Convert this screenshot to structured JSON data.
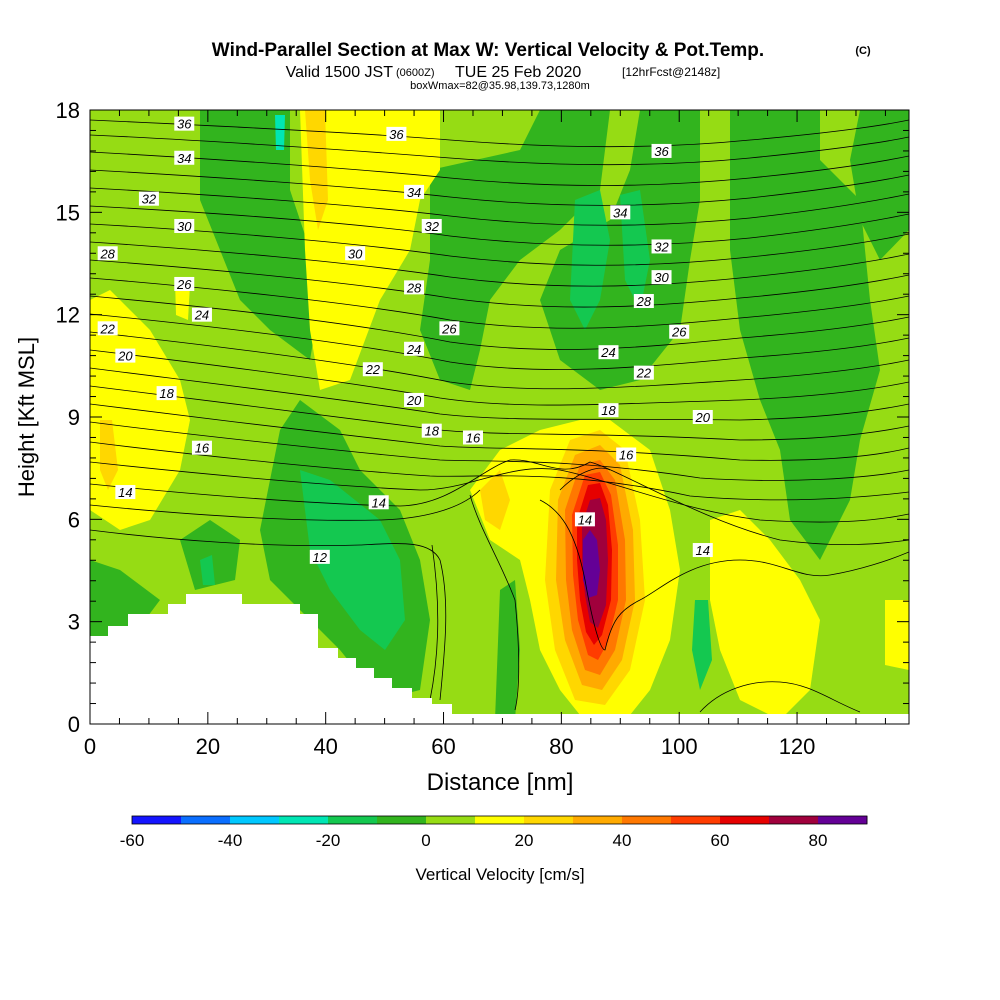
{
  "header": {
    "title": "Wind-Parallel Section at Max W: Vertical Velocity & Pot.Temp.",
    "copyright": "(C)",
    "valid_prefix": "Valid 1500 JST",
    "valid_zulu": "(0600Z)",
    "valid_date": "TUE 25 Feb 2020",
    "forecast": "[12hrFcst@2148z]",
    "box_info": "boxWmax=82@35.98,139.73,1280m"
  },
  "chart_data": {
    "type": "heatmap",
    "xlabel": "Distance [nm]",
    "ylabel": "Height [Kft MSL]",
    "xlim": [
      0,
      139
    ],
    "ylim": [
      0,
      18
    ],
    "x_ticks": [
      "0",
      "20",
      "40",
      "60",
      "80",
      "100",
      "120"
    ],
    "x_tick_values": [
      0,
      20,
      40,
      60,
      80,
      100,
      120
    ],
    "y_ticks": [
      "0",
      "3",
      "6",
      "9",
      "12",
      "15",
      "18"
    ],
    "y_tick_values": [
      0,
      3,
      6,
      9,
      12,
      15,
      18
    ],
    "colorbar": {
      "label": "Vertical Velocity [cm/s]",
      "tick_labels": [
        "-60",
        "-40",
        "-20",
        "0",
        "20",
        "40",
        "60",
        "80"
      ],
      "tick_values": [
        -60,
        -40,
        -20,
        0,
        20,
        40,
        60,
        80
      ],
      "range": [
        -60,
        90
      ],
      "colors": [
        "#1414ff",
        "#0a6eff",
        "#00c8ff",
        "#00e6b4",
        "#14c850",
        "#32b41e",
        "#96dc14",
        "#ffff00",
        "#ffd700",
        "#ffaa00",
        "#ff7800",
        "#ff3c00",
        "#e60000",
        "#a0003c",
        "#640096"
      ]
    },
    "contour_labels": [
      {
        "x": 16,
        "y": 17.6,
        "text": "36"
      },
      {
        "x": 52,
        "y": 17.3,
        "text": "36"
      },
      {
        "x": 97,
        "y": 16.8,
        "text": "36"
      },
      {
        "x": 16,
        "y": 16.6,
        "text": "34"
      },
      {
        "x": 55,
        "y": 15.6,
        "text": "34"
      },
      {
        "x": 90,
        "y": 15.0,
        "text": "34"
      },
      {
        "x": 10,
        "y": 15.4,
        "text": "32"
      },
      {
        "x": 58,
        "y": 14.6,
        "text": "32"
      },
      {
        "x": 97,
        "y": 14.0,
        "text": "32"
      },
      {
        "x": 16,
        "y": 14.6,
        "text": "30"
      },
      {
        "x": 45,
        "y": 13.8,
        "text": "30"
      },
      {
        "x": 97,
        "y": 13.1,
        "text": "30"
      },
      {
        "x": 3,
        "y": 13.8,
        "text": "28"
      },
      {
        "x": 55,
        "y": 12.8,
        "text": "28"
      },
      {
        "x": 94,
        "y": 12.4,
        "text": "28"
      },
      {
        "x": 16,
        "y": 12.9,
        "text": "26"
      },
      {
        "x": 61,
        "y": 11.6,
        "text": "26"
      },
      {
        "x": 100,
        "y": 11.5,
        "text": "26"
      },
      {
        "x": 19,
        "y": 12.0,
        "text": "24"
      },
      {
        "x": 55,
        "y": 11.0,
        "text": "24"
      },
      {
        "x": 88,
        "y": 10.9,
        "text": "24"
      },
      {
        "x": 3,
        "y": 11.6,
        "text": "22"
      },
      {
        "x": 48,
        "y": 10.4,
        "text": "22"
      },
      {
        "x": 94,
        "y": 10.3,
        "text": "22"
      },
      {
        "x": 6,
        "y": 10.8,
        "text": "20"
      },
      {
        "x": 55,
        "y": 9.5,
        "text": "20"
      },
      {
        "x": 104,
        "y": 9.0,
        "text": "20"
      },
      {
        "x": 13,
        "y": 9.7,
        "text": "18"
      },
      {
        "x": 58,
        "y": 8.6,
        "text": "18"
      },
      {
        "x": 88,
        "y": 9.2,
        "text": "18"
      },
      {
        "x": 19,
        "y": 8.1,
        "text": "16"
      },
      {
        "x": 65,
        "y": 8.4,
        "text": "16"
      },
      {
        "x": 91,
        "y": 7.9,
        "text": "16"
      },
      {
        "x": 6,
        "y": 6.8,
        "text": "14"
      },
      {
        "x": 49,
        "y": 6.5,
        "text": "14"
      },
      {
        "x": 84,
        "y": 6.0,
        "text": "14"
      },
      {
        "x": 104,
        "y": 5.1,
        "text": "14"
      },
      {
        "x": 39,
        "y": 4.9,
        "text": "12"
      }
    ]
  }
}
